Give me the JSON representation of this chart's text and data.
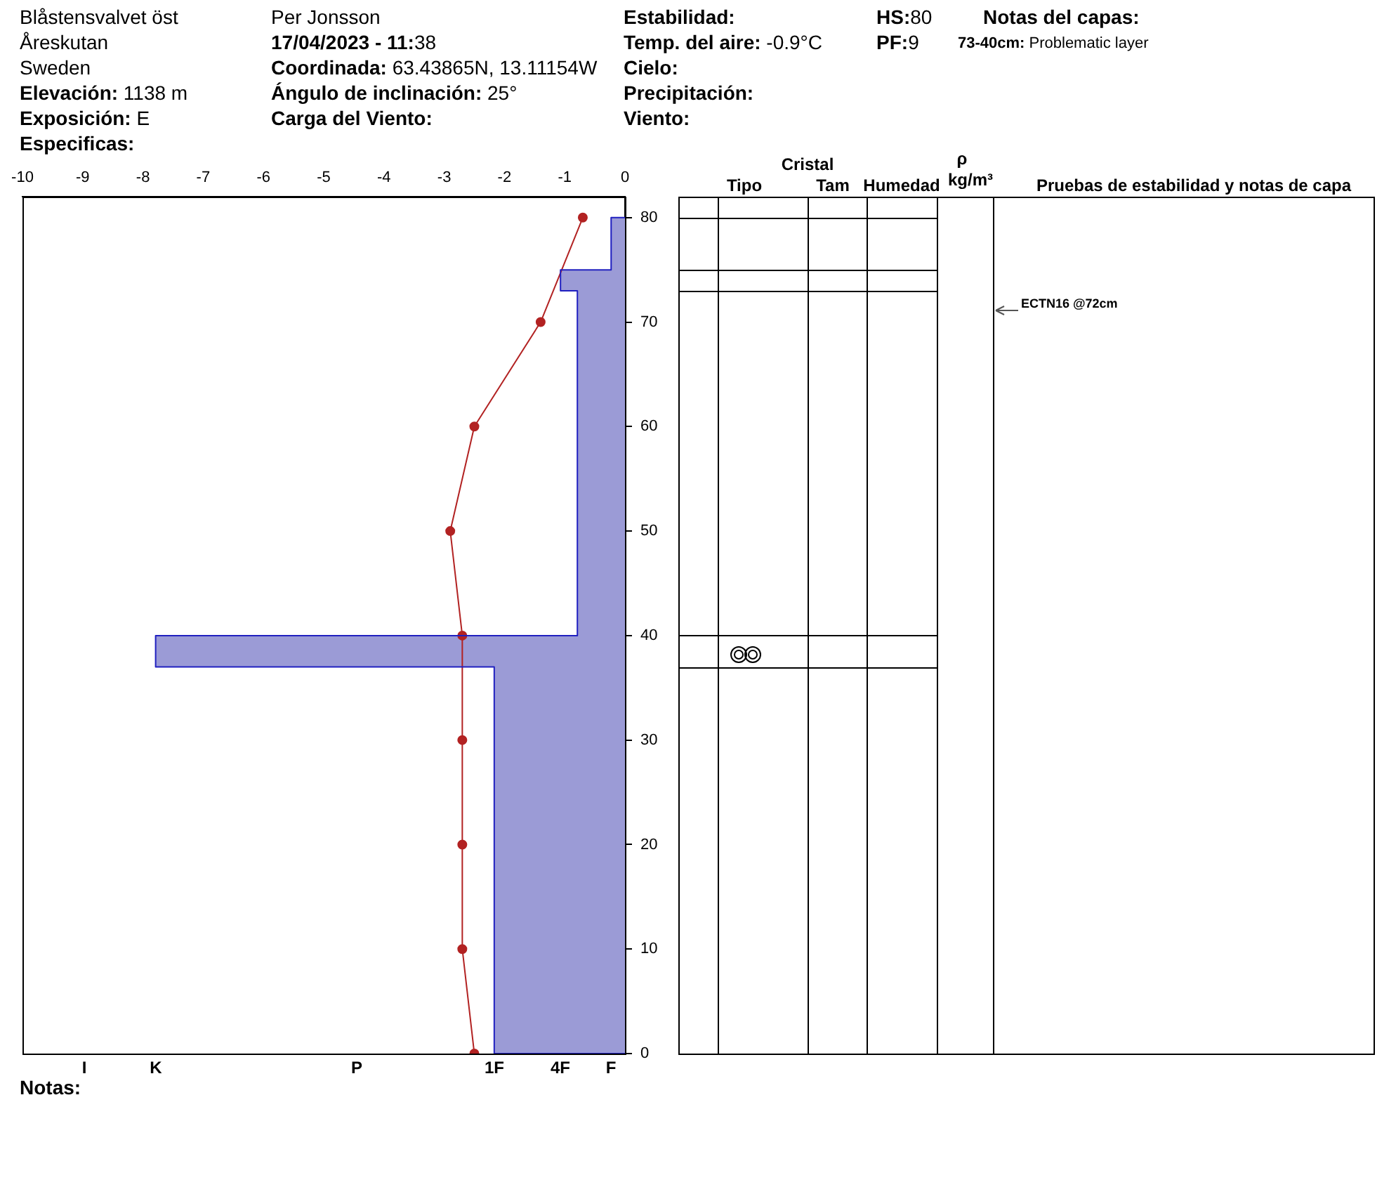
{
  "chart_data": {
    "type": "line",
    "annotations": [
      "Blåstensvalvet öst",
      "Åreskutan",
      "Sweden",
      "Elevación: 1138 m",
      "Exposición: E",
      "Especificas:",
      "Per Jonsson",
      "17/04/2023 - 11:38",
      "Coordinada: 63.43865N, 13.11154W",
      "Ángulo de inclinación: 25°",
      "Carga del Viento:",
      "Estabilidad:",
      "Temp. del aire: -0.9°C",
      "Cielo:",
      "Precipitación:",
      "Viento:",
      "HS:80",
      "PF:9",
      "Notas del capas:",
      "73-40cm: Problematic layer",
      "Notas:",
      "Cristal",
      "Tipo",
      "Tam",
      "Humedad",
      "ρ",
      "kg/m³",
      "Pruebas de estabilidad y notas de capa",
      "ECTN16 @72cm",
      "I",
      "K",
      "P",
      "1F",
      "4F",
      "F"
    ],
    "xlim": [
      -10,
      0
    ],
    "xticks": [
      -10,
      -9,
      -8,
      -7,
      -6,
      -5,
      -4,
      -3,
      -2,
      -1,
      0
    ],
    "ylim": [
      0,
      82
    ],
    "yticks": [
      0,
      10,
      20,
      30,
      40,
      50,
      60,
      70,
      80
    ],
    "series": [
      {
        "type": "area",
        "color": "#9b9bd6",
        "x": [
          0,
          -2.17,
          -2.17,
          -7.79,
          -7.79,
          -0.79,
          -0.79,
          -1.07,
          -1.07,
          -0.23,
          -0.23,
          0
        ],
        "values": [
          0,
          0,
          37,
          37,
          40,
          40,
          73,
          73,
          75,
          75,
          80,
          80
        ]
      },
      {
        "type": "line",
        "marker": "circle",
        "color": "#b22222",
        "x": [
          -2.5,
          -2.7,
          -2.7,
          -2.7,
          -2.7,
          -2.9,
          -2.5,
          -1.4,
          -0.7
        ],
        "values": [
          0,
          10,
          20,
          30,
          40,
          50,
          60,
          70,
          80
        ]
      }
    ],
    "grid": false,
    "legend": false
  }
}
